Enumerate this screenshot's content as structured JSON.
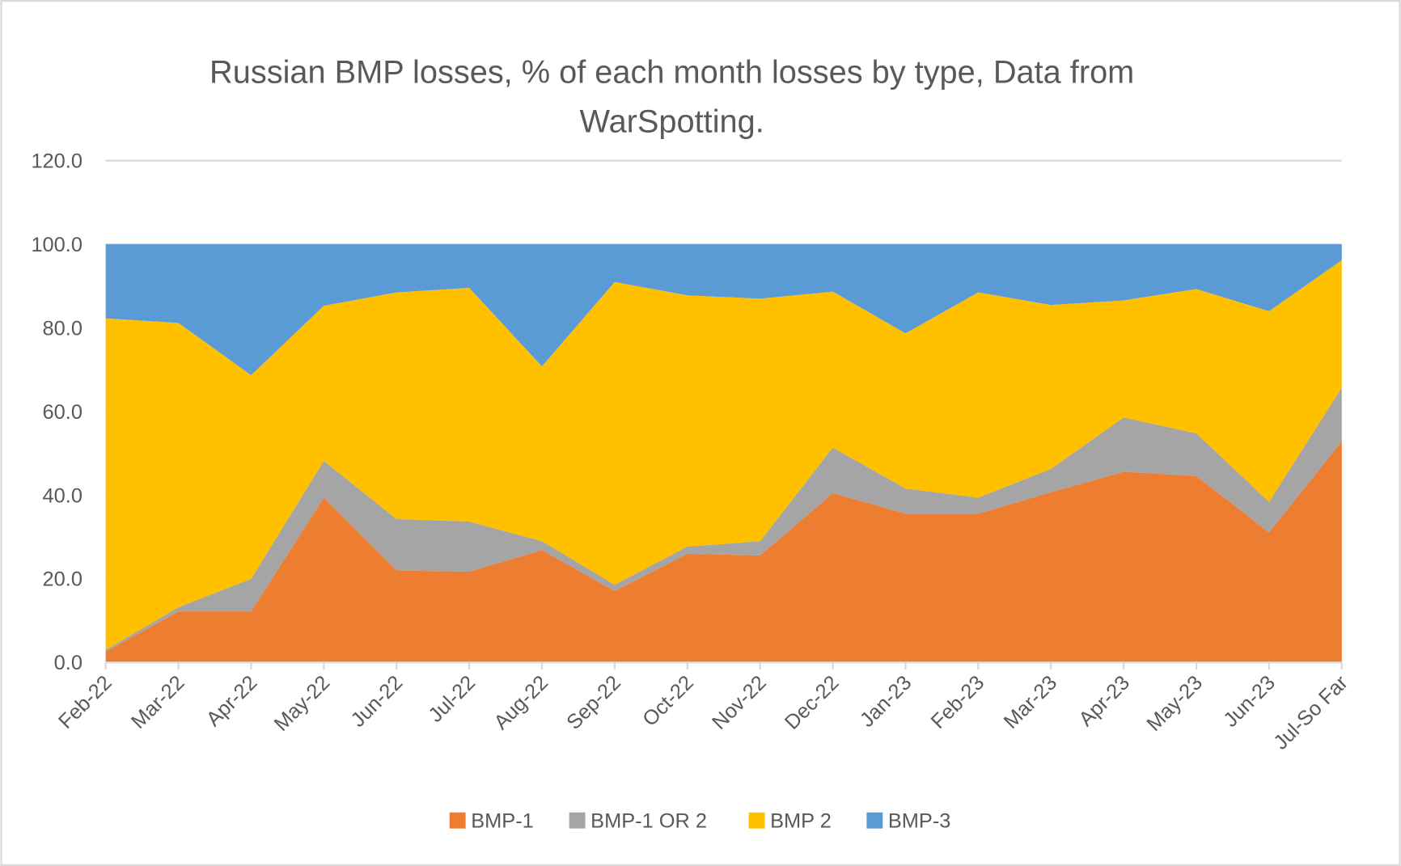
{
  "chart_data": {
    "type": "area",
    "stacked": true,
    "title_lines": [
      "Russian BMP losses, % of each month losses by type, Data from",
      "WarSpotting."
    ],
    "xlabel": "",
    "ylabel": "",
    "ylim": [
      0,
      120
    ],
    "yticks": [
      "0.0",
      "20.0",
      "40.0",
      "60.0",
      "80.0",
      "100.0",
      "120.0"
    ],
    "ytick_values": [
      0,
      20,
      40,
      60,
      80,
      100,
      120
    ],
    "grid": "horizontal major gridlines",
    "legend_position": "bottom",
    "categories": [
      "Feb-22",
      "Mar-22",
      "Apr-22",
      "May-22",
      "Jun-22",
      "Jul-22",
      "Aug-22",
      "Sep-22",
      "Oct-22",
      "Nov-22",
      "Dec-22",
      "Jan-23",
      "Feb-23",
      "Mar-23",
      "Apr-23",
      "May-23",
      "Jun-23",
      "Jul-So Far"
    ],
    "series": [
      {
        "name": "BMP-1",
        "color": "#ED7D31",
        "values": [
          2.6,
          12.2,
          12.2,
          39.4,
          22.0,
          21.7,
          26.9,
          17.1,
          26.0,
          25.6,
          40.5,
          35.6,
          35.6,
          40.7,
          45.6,
          44.6,
          31.1,
          52.9
        ]
      },
      {
        "name": "BMP-1 OR 2",
        "color": "#A5A5A5",
        "values": [
          0.4,
          1.0,
          7.8,
          8.8,
          12.3,
          12.0,
          2.1,
          1.5,
          1.7,
          3.4,
          10.9,
          6.0,
          3.8,
          5.6,
          13.0,
          10.2,
          7.3,
          12.8
        ]
      },
      {
        "name": "BMP 2",
        "color": "#FFC000",
        "values": [
          79.3,
          68.0,
          48.7,
          37.1,
          54.2,
          55.9,
          41.8,
          72.4,
          60.1,
          58.0,
          37.3,
          37.1,
          49.1,
          39.2,
          28.0,
          34.5,
          45.6,
          30.5
        ]
      },
      {
        "name": "BMP-3",
        "color": "#5B9BD5",
        "values": [
          17.7,
          18.8,
          31.3,
          14.7,
          11.5,
          10.4,
          29.2,
          9.0,
          12.2,
          13.0,
          11.3,
          21.3,
          11.5,
          14.5,
          13.4,
          10.7,
          16.0,
          3.8
        ]
      }
    ]
  }
}
